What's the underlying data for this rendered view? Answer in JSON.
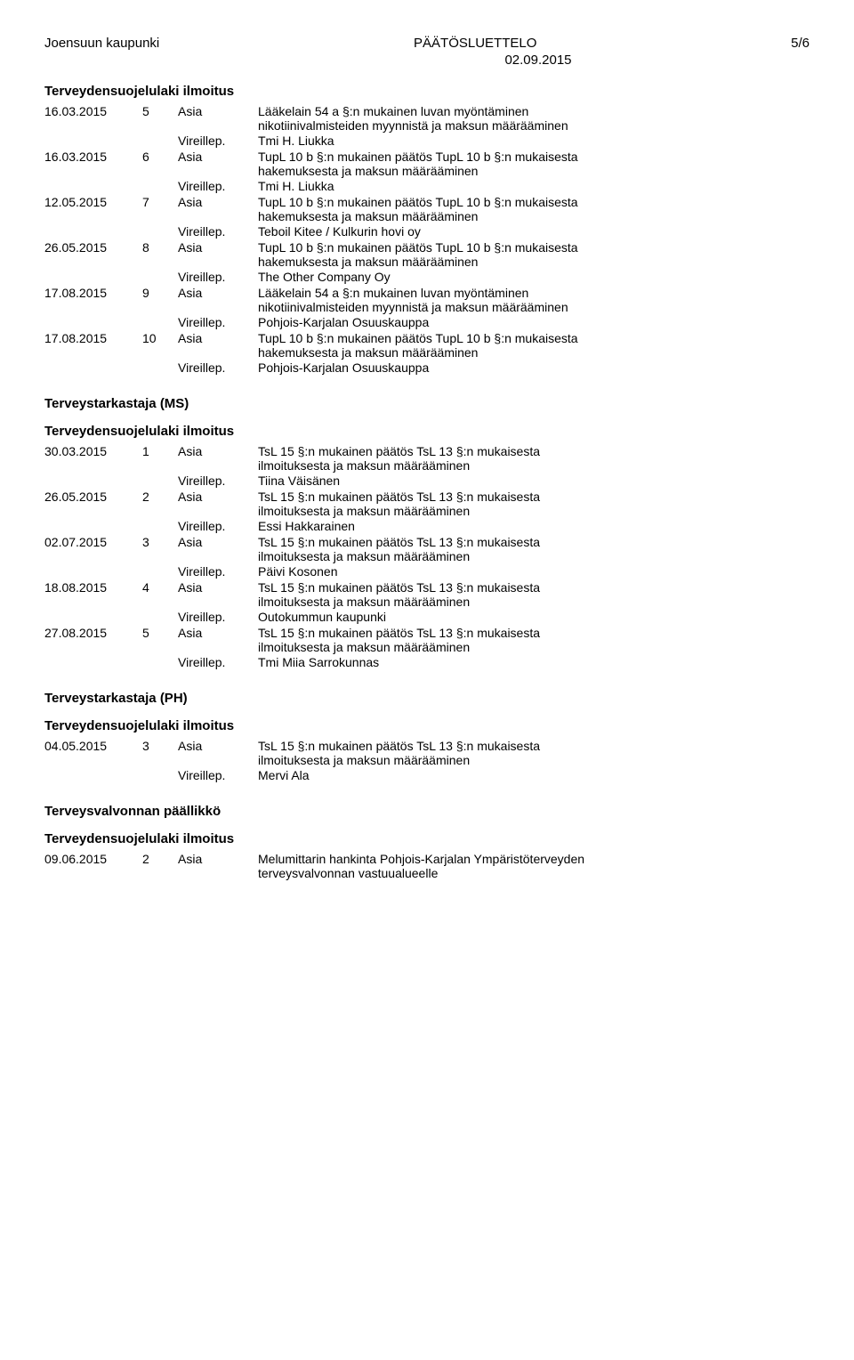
{
  "header": {
    "left": "Joensuun kaupunki",
    "center": "PÄÄTÖSLUETTELO",
    "right": "5/6",
    "date": "02.09.2015"
  },
  "type_label": "Asia",
  "vireillep_label": "Vireillep.",
  "sections": [
    {
      "title": "Terveydensuojelulaki ilmoitus",
      "entries": [
        {
          "date": "16.03.2015",
          "num": "5",
          "desc_lines": [
            "Lääkelain 54 a §:n mukainen luvan myöntäminen",
            "nikotiinivalmisteiden myynnistä ja maksun määrääminen"
          ],
          "vireillep": "Tmi H. Liukka"
        },
        {
          "date": "16.03.2015",
          "num": "6",
          "desc_lines": [
            "TupL 10 b §:n mukainen päätös TupL 10 b §:n mukaisesta",
            "hakemuksesta ja maksun määrääminen"
          ],
          "vireillep": "Tmi H. Liukka"
        },
        {
          "date": "12.05.2015",
          "num": "7",
          "desc_lines": [
            "TupL 10 b §:n mukainen päätös TupL 10 b §:n mukaisesta",
            "hakemuksesta ja maksun määrääminen"
          ],
          "vireillep": "Teboil Kitee / Kulkurin hovi oy"
        },
        {
          "date": "26.05.2015",
          "num": "8",
          "desc_lines": [
            "TupL 10 b §:n mukainen päätös TupL 10 b §:n mukaisesta",
            "hakemuksesta ja maksun määrääminen"
          ],
          "vireillep": "The Other Company Oy"
        },
        {
          "date": "17.08.2015",
          "num": "9",
          "desc_lines": [
            "Lääkelain 54 a §:n mukainen luvan myöntäminen",
            "nikotiinivalmisteiden myynnistä ja maksun määrääminen"
          ],
          "vireillep": "Pohjois-Karjalan Osuuskauppa"
        },
        {
          "date": "17.08.2015",
          "num": "10",
          "desc_lines": [
            "TupL 10 b §:n mukainen päätös TupL 10 b §:n mukaisesta",
            "hakemuksesta ja maksun määrääminen"
          ],
          "vireillep": "Pohjois-Karjalan Osuuskauppa"
        }
      ]
    }
  ],
  "roles": [
    {
      "role": "Terveystarkastaja (MS)",
      "section_title": "Terveydensuojelulaki ilmoitus",
      "entries": [
        {
          "date": "30.03.2015",
          "num": "1",
          "desc_lines": [
            "TsL 15 §:n mukainen päätös TsL 13 §:n mukaisesta",
            "ilmoituksesta ja maksun määrääminen"
          ],
          "vireillep": "Tiina Väisänen"
        },
        {
          "date": "26.05.2015",
          "num": "2",
          "desc_lines": [
            "TsL 15 §:n mukainen päätös TsL 13 §:n mukaisesta",
            "ilmoituksesta ja maksun määrääminen"
          ],
          "vireillep": "Essi Hakkarainen"
        },
        {
          "date": "02.07.2015",
          "num": "3",
          "desc_lines": [
            "TsL 15 §:n mukainen päätös TsL 13 §:n mukaisesta",
            "ilmoituksesta ja maksun määrääminen"
          ],
          "vireillep": "Päivi Kosonen"
        },
        {
          "date": "18.08.2015",
          "num": "4",
          "desc_lines": [
            "TsL 15 §:n mukainen päätös TsL 13 §:n mukaisesta",
            "ilmoituksesta ja maksun määrääminen"
          ],
          "vireillep": "Outokummun kaupunki"
        },
        {
          "date": "27.08.2015",
          "num": "5",
          "desc_lines": [
            "TsL 15 §:n mukainen päätös TsL 13 §:n mukaisesta",
            "ilmoituksesta ja maksun määrääminen"
          ],
          "vireillep": "Tmi Miia Sarrokunnas"
        }
      ]
    },
    {
      "role": "Terveystarkastaja (PH)",
      "section_title": "Terveydensuojelulaki ilmoitus",
      "entries": [
        {
          "date": "04.05.2015",
          "num": "3",
          "desc_lines": [
            "TsL 15 §:n mukainen päätös TsL 13 §:n mukaisesta",
            "ilmoituksesta ja maksun määrääminen"
          ],
          "vireillep": "Mervi Ala"
        }
      ]
    },
    {
      "role": "Terveysvalvonnan päällikkö",
      "section_title": "Terveydensuojelulaki ilmoitus",
      "entries": [
        {
          "date": "09.06.2015",
          "num": "2",
          "desc_lines": [
            "Melumittarin hankinta Pohjois-Karjalan Ympäristöterveyden",
            "terveysvalvonnan vastuualueelle"
          ],
          "vireillep": null
        }
      ]
    }
  ]
}
